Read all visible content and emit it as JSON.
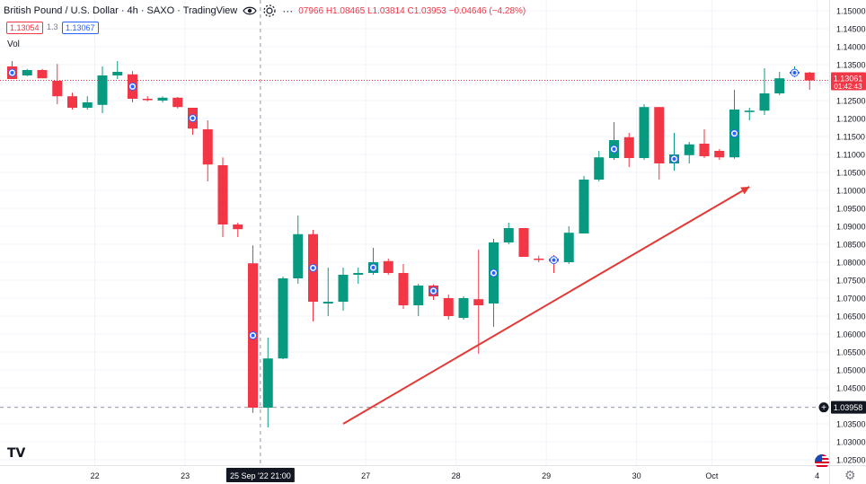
{
  "header": {
    "title": "British Pound / U.S. Dollar · 4h · SAXO · TradingView",
    "ohlc": "07966 H1.08465 L1.03814 C1.03953 −0.04646 (−4.28%)",
    "sell_price": "1.13054",
    "spread": "1.3",
    "buy_price": "1.13067",
    "volume_label": "Vol"
  },
  "colors": {
    "up": "#089981",
    "down": "#f23645",
    "arrow": "#e53935",
    "grid": "#f0f3fa",
    "axis_text": "#131722",
    "dot_bg": "#2962ff"
  },
  "chart_data": {
    "type": "candlestick",
    "title": "British Pound / U.S. Dollar · 4h · SAXO",
    "xlabel": "",
    "ylabel": "",
    "ylim": [
      1.0235,
      1.153
    ],
    "y_ticks": [
      "1.15000",
      "1.14500",
      "1.14000",
      "1.13500",
      "1.13000",
      "1.12500",
      "1.12000",
      "1.11500",
      "1.11000",
      "1.10500",
      "1.10000",
      "1.09500",
      "1.09000",
      "1.08500",
      "1.08000",
      "1.07500",
      "1.07000",
      "1.06500",
      "1.06000",
      "1.05500",
      "1.05000",
      "1.04500",
      "1.04000",
      "1.03500",
      "1.03000",
      "1.02500"
    ],
    "x_ticks": [
      {
        "label": "22",
        "index": 5.5
      },
      {
        "label": "23",
        "index": 11.5
      },
      {
        "label": "27",
        "index": 23.5
      },
      {
        "label": "28",
        "index": 29.5
      },
      {
        "label": "29",
        "index": 35.5
      },
      {
        "label": "30",
        "index": 41.5
      },
      {
        "label": "Oct",
        "index": 46.5
      },
      {
        "label": "4",
        "index": 53.5
      }
    ],
    "crosshair": {
      "index": 16.5,
      "label": "25 Sep '22   21:00",
      "price": "1.03958",
      "price_value": 1.03958
    },
    "last_price": {
      "value": 1.13061,
      "label": "1.13061",
      "countdown": "01:42:43"
    },
    "candles": [
      {
        "o": 1.1345,
        "h": 1.136,
        "l": 1.131,
        "c": 1.131,
        "dot": true
      },
      {
        "o": 1.132,
        "h": 1.1338,
        "l": 1.1318,
        "c": 1.1335
      },
      {
        "o": 1.1335,
        "h": 1.1338,
        "l": 1.1312,
        "c": 1.1312
      },
      {
        "o": 1.1305,
        "h": 1.1352,
        "l": 1.124,
        "c": 1.1262
      },
      {
        "o": 1.1262,
        "h": 1.1272,
        "l": 1.1225,
        "c": 1.123
      },
      {
        "o": 1.123,
        "h": 1.1262,
        "l": 1.1225,
        "c": 1.1245
      },
      {
        "o": 1.1238,
        "h": 1.1345,
        "l": 1.1215,
        "c": 1.132
      },
      {
        "o": 1.132,
        "h": 1.136,
        "l": 1.131,
        "c": 1.133
      },
      {
        "o": 1.1323,
        "h": 1.1332,
        "l": 1.1245,
        "c": 1.1255,
        "dot": true
      },
      {
        "o": 1.1255,
        "h": 1.1262,
        "l": 1.1248,
        "c": 1.1252
      },
      {
        "o": 1.125,
        "h": 1.1262,
        "l": 1.1245,
        "c": 1.1258
      },
      {
        "o": 1.1258,
        "h": 1.126,
        "l": 1.1228,
        "c": 1.1232
      },
      {
        "o": 1.123,
        "h": 1.123,
        "l": 1.1155,
        "c": 1.1172,
        "dot": true
      },
      {
        "o": 1.117,
        "h": 1.1195,
        "l": 1.1025,
        "c": 1.1072
      },
      {
        "o": 1.107,
        "h": 1.1092,
        "l": 1.087,
        "c": 1.0905
      },
      {
        "o": 1.0905,
        "h": 1.091,
        "l": 1.087,
        "c": 1.0892
      },
      {
        "o": 1.0797,
        "h": 1.0847,
        "l": 1.0381,
        "c": 1.0395,
        "dot": true
      },
      {
        "o": 1.0395,
        "h": 1.059,
        "l": 1.034,
        "c": 1.0532
      },
      {
        "o": 1.0532,
        "h": 1.076,
        "l": 1.053,
        "c": 1.0755
      },
      {
        "o": 1.0755,
        "h": 1.093,
        "l": 1.074,
        "c": 1.0878
      },
      {
        "o": 1.0878,
        "h": 1.089,
        "l": 1.0635,
        "c": 1.069,
        "dot": true
      },
      {
        "o": 1.0685,
        "h": 1.0785,
        "l": 1.065,
        "c": 1.069
      },
      {
        "o": 1.069,
        "h": 1.0785,
        "l": 1.0665,
        "c": 1.0765
      },
      {
        "o": 1.0765,
        "h": 1.0785,
        "l": 1.074,
        "c": 1.077
      },
      {
        "o": 1.077,
        "h": 1.084,
        "l": 1.0765,
        "c": 1.08,
        "dot": true
      },
      {
        "o": 1.0803,
        "h": 1.081,
        "l": 1.0765,
        "c": 1.077
      },
      {
        "o": 1.077,
        "h": 1.0795,
        "l": 1.067,
        "c": 1.068
      },
      {
        "o": 1.068,
        "h": 1.074,
        "l": 1.065,
        "c": 1.0735
      },
      {
        "o": 1.0735,
        "h": 1.0738,
        "l": 1.0695,
        "c": 1.0705,
        "dot": true
      },
      {
        "o": 1.07,
        "h": 1.071,
        "l": 1.064,
        "c": 1.065
      },
      {
        "o": 1.0645,
        "h": 1.0705,
        "l": 1.064,
        "c": 1.07
      },
      {
        "o": 1.0697,
        "h": 1.0835,
        "l": 1.0545,
        "c": 1.068
      },
      {
        "o": 1.0685,
        "h": 1.0865,
        "l": 1.062,
        "c": 1.0855,
        "dot": true
      },
      {
        "o": 1.0855,
        "h": 1.091,
        "l": 1.085,
        "c": 1.0895
      },
      {
        "o": 1.0895,
        "h": 1.0895,
        "l": 1.0815,
        "c": 1.0815
      },
      {
        "o": 1.081,
        "h": 1.0818,
        "l": 1.08,
        "c": 1.0808
      },
      {
        "o": 1.081,
        "h": 1.082,
        "l": 1.077,
        "c": 1.0802,
        "dot": true
      },
      {
        "o": 1.08,
        "h": 1.09,
        "l": 1.0795,
        "c": 1.0882
      },
      {
        "o": 1.088,
        "h": 1.104,
        "l": 1.088,
        "c": 1.103
      },
      {
        "o": 1.103,
        "h": 1.111,
        "l": 1.1025,
        "c": 1.1092
      },
      {
        "o": 1.109,
        "h": 1.119,
        "l": 1.1085,
        "c": 1.114,
        "dot": true
      },
      {
        "o": 1.1148,
        "h": 1.116,
        "l": 1.1065,
        "c": 1.109
      },
      {
        "o": 1.109,
        "h": 1.124,
        "l": 1.1085,
        "c": 1.1232
      },
      {
        "o": 1.1232,
        "h": 1.1232,
        "l": 1.103,
        "c": 1.1075
      },
      {
        "o": 1.1075,
        "h": 1.116,
        "l": 1.1055,
        "c": 1.11,
        "dot": true
      },
      {
        "o": 1.1098,
        "h": 1.1135,
        "l": 1.1075,
        "c": 1.1128
      },
      {
        "o": 1.113,
        "h": 1.117,
        "l": 1.109,
        "c": 1.1095
      },
      {
        "o": 1.111,
        "h": 1.1115,
        "l": 1.1085,
        "c": 1.1092
      },
      {
        "o": 1.1092,
        "h": 1.128,
        "l": 1.1088,
        "c": 1.1225,
        "dot": true
      },
      {
        "o": 1.1218,
        "h": 1.123,
        "l": 1.1195,
        "c": 1.1222
      },
      {
        "o": 1.1222,
        "h": 1.134,
        "l": 1.121,
        "c": 1.127
      },
      {
        "o": 1.127,
        "h": 1.133,
        "l": 1.1265,
        "c": 1.1312
      },
      {
        "o": 1.1325,
        "h": 1.1345,
        "l": 1.1315,
        "c": 1.133,
        "dot": true
      },
      {
        "o": 1.1328,
        "h": 1.133,
        "l": 1.128,
        "c": 1.1306
      }
    ],
    "trend_arrow": {
      "from_index": 22.0,
      "from_value": 1.035,
      "to_index": 49.0,
      "to_value": 1.101
    }
  }
}
